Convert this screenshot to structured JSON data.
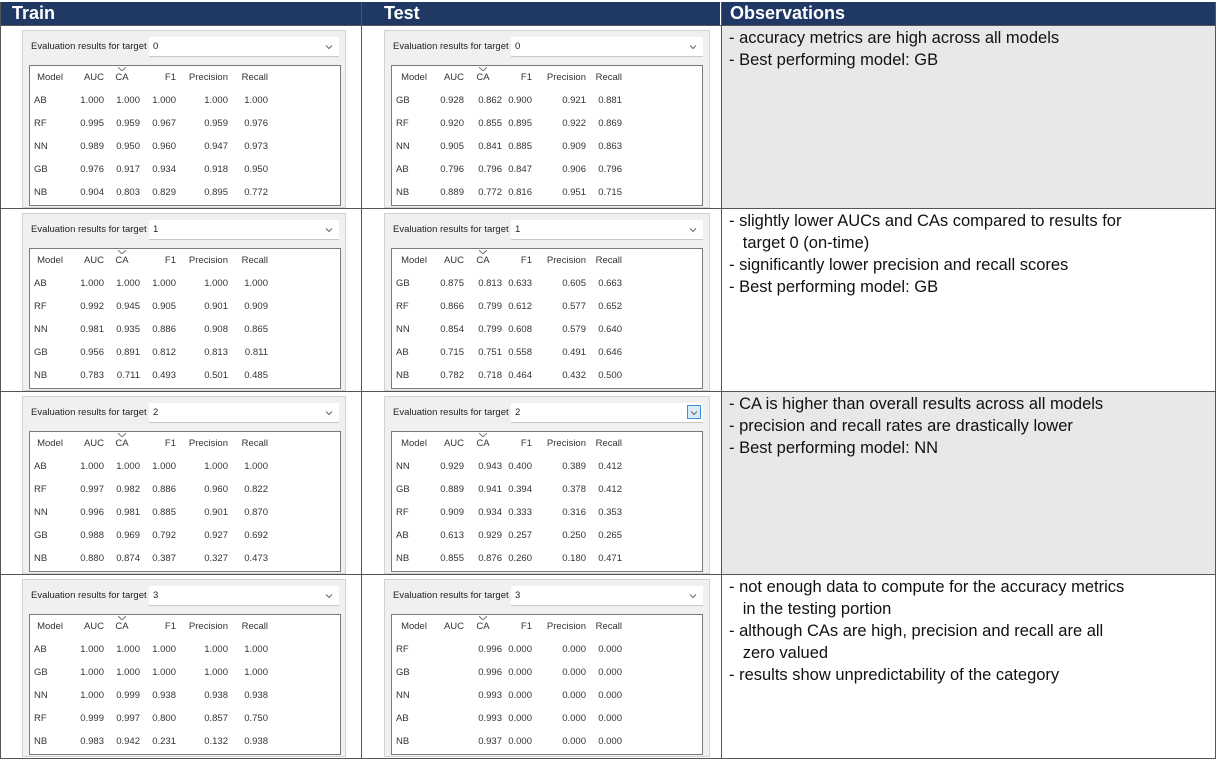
{
  "headers": {
    "train": "Train",
    "test": "Test",
    "observations": "Observations"
  },
  "panel_label": "Evaluation results for target",
  "columns": [
    "Model",
    "AUC",
    "CA",
    "F1",
    "Precision",
    "Recall"
  ],
  "colors": {
    "header_bg": "#1f3864",
    "header_text": "#ffffff",
    "cell_gray": "#e8e8e8",
    "panel_bg": "#f0f0f0"
  },
  "rows": [
    {
      "target": "0",
      "train": [
        [
          "AB",
          "1.000",
          "1.000",
          "1.000",
          "1.000",
          "1.000"
        ],
        [
          "RF",
          "0.995",
          "0.959",
          "0.967",
          "0.959",
          "0.976"
        ],
        [
          "NN",
          "0.989",
          "0.950",
          "0.960",
          "0.947",
          "0.973"
        ],
        [
          "GB",
          "0.976",
          "0.917",
          "0.934",
          "0.918",
          "0.950"
        ],
        [
          "NB",
          "0.904",
          "0.803",
          "0.829",
          "0.895",
          "0.772"
        ]
      ],
      "test": [
        [
          "GB",
          "0.928",
          "0.862",
          "0.900",
          "0.921",
          "0.881"
        ],
        [
          "RF",
          "0.920",
          "0.855",
          "0.895",
          "0.922",
          "0.869"
        ],
        [
          "NN",
          "0.905",
          "0.841",
          "0.885",
          "0.909",
          "0.863"
        ],
        [
          "AB",
          "0.796",
          "0.796",
          "0.847",
          "0.906",
          "0.796"
        ],
        [
          "NB",
          "0.889",
          "0.772",
          "0.816",
          "0.951",
          "0.715"
        ]
      ],
      "observations": [
        "- accuracy metrics are high across all models",
        "- Best performing model: GB"
      ]
    },
    {
      "target": "1",
      "train": [
        [
          "AB",
          "1.000",
          "1.000",
          "1.000",
          "1.000",
          "1.000"
        ],
        [
          "RF",
          "0.992",
          "0.945",
          "0.905",
          "0.901",
          "0.909"
        ],
        [
          "NN",
          "0.981",
          "0.935",
          "0.886",
          "0.908",
          "0.865"
        ],
        [
          "GB",
          "0.956",
          "0.891",
          "0.812",
          "0.813",
          "0.811"
        ],
        [
          "NB",
          "0.783",
          "0.711",
          "0.493",
          "0.501",
          "0.485"
        ]
      ],
      "test": [
        [
          "GB",
          "0.875",
          "0.813",
          "0.633",
          "0.605",
          "0.663"
        ],
        [
          "RF",
          "0.866",
          "0.799",
          "0.612",
          "0.577",
          "0.652"
        ],
        [
          "NN",
          "0.854",
          "0.799",
          "0.608",
          "0.579",
          "0.640"
        ],
        [
          "AB",
          "0.715",
          "0.751",
          "0.558",
          "0.491",
          "0.646"
        ],
        [
          "NB",
          "0.782",
          "0.718",
          "0.464",
          "0.432",
          "0.500"
        ]
      ],
      "observations": [
        "- slightly lower AUCs and CAs compared to results for",
        "   target 0 (on-time)",
        "- significantly lower precision and recall scores",
        "- Best performing model: GB"
      ]
    },
    {
      "target": "2",
      "train": [
        [
          "AB",
          "1.000",
          "1.000",
          "1.000",
          "1.000",
          "1.000"
        ],
        [
          "RF",
          "0.997",
          "0.982",
          "0.886",
          "0.960",
          "0.822"
        ],
        [
          "NN",
          "0.996",
          "0.981",
          "0.885",
          "0.901",
          "0.870"
        ],
        [
          "GB",
          "0.988",
          "0.969",
          "0.792",
          "0.927",
          "0.692"
        ],
        [
          "NB",
          "0.880",
          "0.874",
          "0.387",
          "0.327",
          "0.473"
        ]
      ],
      "test": [
        [
          "NN",
          "0.929",
          "0.943",
          "0.400",
          "0.389",
          "0.412"
        ],
        [
          "GB",
          "0.889",
          "0.941",
          "0.394",
          "0.378",
          "0.412"
        ],
        [
          "RF",
          "0.909",
          "0.934",
          "0.333",
          "0.316",
          "0.353"
        ],
        [
          "AB",
          "0.613",
          "0.929",
          "0.257",
          "0.250",
          "0.265"
        ],
        [
          "NB",
          "0.855",
          "0.876",
          "0.260",
          "0.180",
          "0.471"
        ]
      ],
      "observations": [
        "- CA is higher than overall results across all models",
        "- precision and recall rates are drastically lower",
        "- Best performing model: NN"
      ]
    },
    {
      "target": "3",
      "train": [
        [
          "AB",
          "1.000",
          "1.000",
          "1.000",
          "1.000",
          "1.000"
        ],
        [
          "GB",
          "1.000",
          "1.000",
          "1.000",
          "1.000",
          "1.000"
        ],
        [
          "NN",
          "1.000",
          "0.999",
          "0.938",
          "0.938",
          "0.938"
        ],
        [
          "RF",
          "0.999",
          "0.997",
          "0.800",
          "0.857",
          "0.750"
        ],
        [
          "NB",
          "0.983",
          "0.942",
          "0.231",
          "0.132",
          "0.938"
        ]
      ],
      "test": [
        [
          "RF",
          "",
          "0.996",
          "0.000",
          "0.000",
          "0.000"
        ],
        [
          "GB",
          "",
          "0.996",
          "0.000",
          "0.000",
          "0.000"
        ],
        [
          "NN",
          "",
          "0.993",
          "0.000",
          "0.000",
          "0.000"
        ],
        [
          "AB",
          "",
          "0.993",
          "0.000",
          "0.000",
          "0.000"
        ],
        [
          "NB",
          "",
          "0.937",
          "0.000",
          "0.000",
          "0.000"
        ]
      ],
      "observations": [
        "- not enough data to compute for the accuracy metrics",
        "   in the testing portion",
        "- although CAs are high, precision and recall are all",
        "   zero valued",
        "- results show unpredictability of the category"
      ]
    }
  ]
}
